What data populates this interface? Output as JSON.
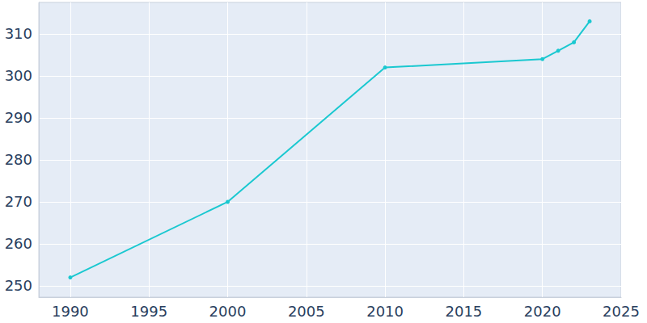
{
  "chart_data": {
    "type": "line",
    "x": [
      1990,
      2000,
      2010,
      2020,
      2021,
      2022,
      2023
    ],
    "values": [
      252,
      270,
      302,
      304,
      306,
      308,
      313
    ],
    "color": "#1ac8d0",
    "marker": "circle",
    "xlim": [
      1988,
      2025
    ],
    "xticks": [
      1990,
      1995,
      2000,
      2005,
      2010,
      2015,
      2020,
      2025
    ],
    "ylim": [
      247.3,
      317.5
    ],
    "yticks": [
      250,
      260,
      270,
      280,
      290,
      300,
      310
    ],
    "grid": true
  }
}
